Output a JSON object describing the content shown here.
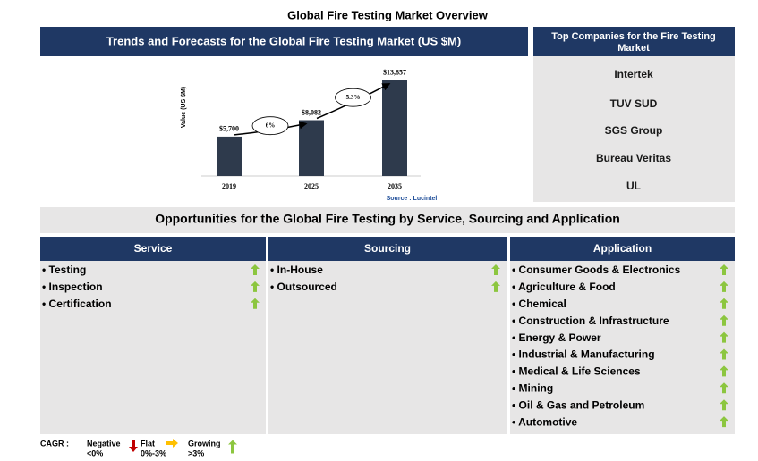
{
  "title": "Global Fire Testing Market Overview",
  "chart_panel": {
    "header": "Trends and Forecasts for the Global Fire Testing Market (US $M)"
  },
  "chart_data": {
    "type": "bar",
    "ylabel": "Value (US $M)",
    "categories": [
      "2019",
      "2025",
      "2035"
    ],
    "values": [
      5700,
      8082,
      13857
    ],
    "value_labels": [
      "$5,700",
      "$8,082",
      "$13,857"
    ],
    "color": "#2e3a4c",
    "ylim": [
      0,
      15000
    ],
    "annotations": [
      "6%",
      "5.3%"
    ],
    "source": "Source : Lucintel"
  },
  "companies": {
    "header": "Top Companies for the Fire Testing Market",
    "items": [
      "Intertek",
      "TUV SUD",
      "SGS Group",
      "Bureau Veritas",
      "UL"
    ]
  },
  "opportunities": {
    "header": "Opportunities for the Global Fire Testing by Service, Sourcing and Application",
    "columns": [
      {
        "title": "Service",
        "items": [
          "• Testing",
          "• Inspection",
          "• Certification"
        ]
      },
      {
        "title": "Sourcing",
        "items": [
          "• In-House",
          "• Outsourced"
        ]
      },
      {
        "title": "Application",
        "items": [
          "• Consumer Goods & Electronics",
          "• Agriculture & Food",
          "• Chemical",
          "• Construction & Infrastructure",
          "• Energy & Power",
          "• Industrial & Manufacturing",
          "• Medical & Life Sciences",
          "• Mining",
          "• Oil & Gas and Petroleum",
          "• Automotive"
        ]
      }
    ]
  },
  "legend": {
    "label": "CAGR :",
    "items": [
      {
        "name": "Negative",
        "range": "<0%"
      },
      {
        "name": "Flat",
        "range": "0%-3%"
      },
      {
        "name": "Growing",
        "range": ">3%"
      }
    ]
  }
}
